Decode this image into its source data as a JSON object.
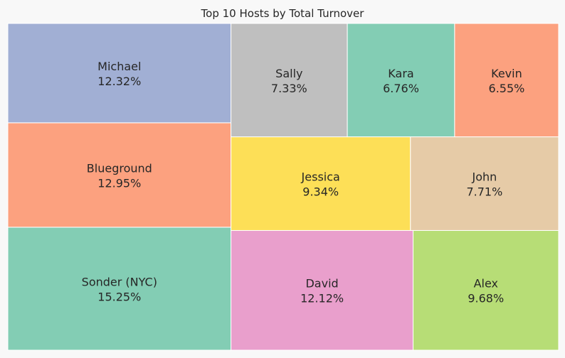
{
  "chart_data": {
    "type": "treemap",
    "title": "Top 10 Hosts by Total Turnover",
    "items": [
      {
        "name": "Sonder (NYC)",
        "pct_label": "15.25%",
        "value": 15.25,
        "color": "#83cdb4"
      },
      {
        "name": "Blueground",
        "pct_label": "12.95%",
        "value": 12.95,
        "color": "#fca17f"
      },
      {
        "name": "Michael",
        "pct_label": "12.32%",
        "value": 12.32,
        "color": "#a1afd4"
      },
      {
        "name": "David",
        "pct_label": "12.12%",
        "value": 12.12,
        "color": "#e99fcc"
      },
      {
        "name": "Alex",
        "pct_label": "9.68%",
        "value": 9.68,
        "color": "#b7dd76"
      },
      {
        "name": "Jessica",
        "pct_label": "9.34%",
        "value": 9.34,
        "color": "#fddf57"
      },
      {
        "name": "John",
        "pct_label": "7.71%",
        "value": 7.71,
        "color": "#e6cba7"
      },
      {
        "name": "Sally",
        "pct_label": "7.33%",
        "value": 7.33,
        "color": "#bfbfbf"
      },
      {
        "name": "Kara",
        "pct_label": "6.76%",
        "value": 6.76,
        "color": "#83cdb4"
      },
      {
        "name": "Kevin",
        "pct_label": "6.55%",
        "value": 6.55,
        "color": "#fca17f"
      }
    ]
  }
}
